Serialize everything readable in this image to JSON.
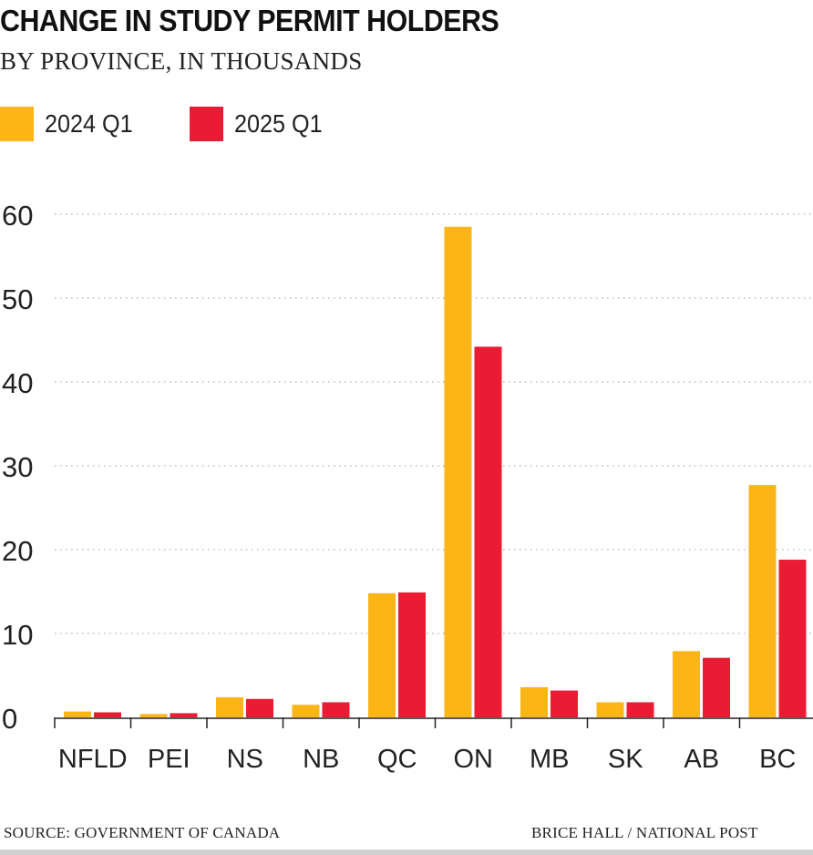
{
  "chart_data": {
    "type": "bar",
    "title": "CHANGE IN STUDY PERMIT HOLDERS",
    "subtitle": "BY PROVINCE, IN THOUSANDS",
    "categories": [
      "NFLD",
      "PEI",
      "NS",
      "NB",
      "QC",
      "ON",
      "MB",
      "SK",
      "AB",
      "BC"
    ],
    "series": [
      {
        "name": "2024 Q1",
        "color": "#fbb516",
        "values": [
          0.7,
          0.4,
          2.4,
          1.5,
          14.8,
          58.5,
          3.6,
          1.8,
          7.9,
          27.7
        ]
      },
      {
        "name": "2025 Q1",
        "color": "#e91c33",
        "values": [
          0.6,
          0.5,
          2.2,
          1.8,
          14.9,
          44.2,
          3.2,
          1.8,
          7.1,
          18.8
        ]
      }
    ],
    "y_ticks": [
      "0",
      "10",
      "20",
      "30",
      "40",
      "50",
      "60"
    ],
    "ylim": [
      0,
      60
    ],
    "xlabel": "",
    "ylabel": "",
    "grid": true,
    "legend": "top-left"
  },
  "footer": {
    "source": "SOURCE: GOVERNMENT OF CANADA",
    "credit": "BRICE HALL  / NATIONAL POST"
  }
}
